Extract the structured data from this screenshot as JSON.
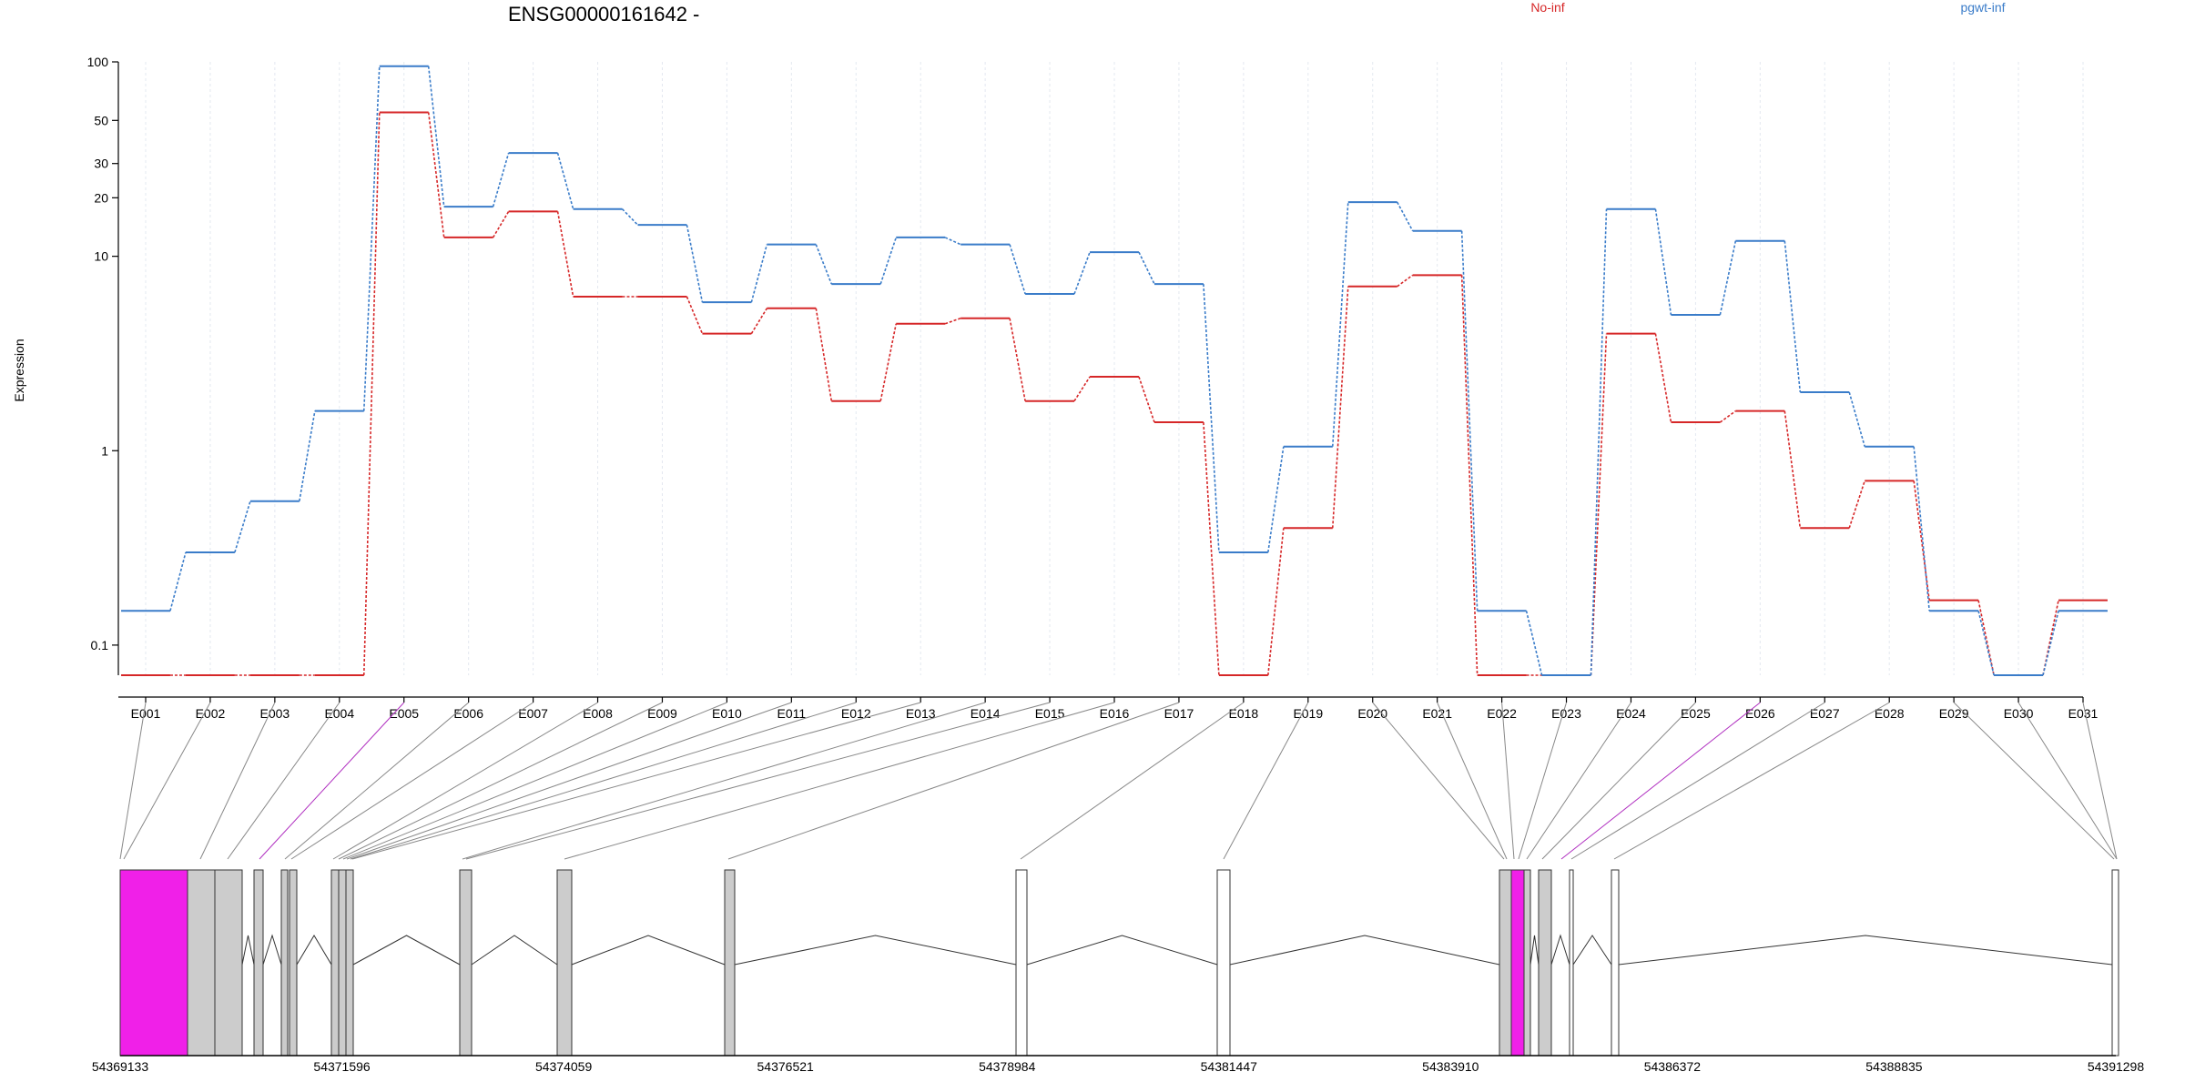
{
  "chart_data": {
    "type": "line",
    "title": "ENSG00000161642 -",
    "xlabel": "",
    "ylabel": "Expression",
    "y_scale": "log",
    "ylim": [
      0.07,
      100
    ],
    "y_ticks": [
      0.1,
      1,
      10,
      20,
      30,
      50,
      100
    ],
    "y_tick_labels": [
      "0.1",
      "1",
      "10",
      "20",
      "30",
      "50",
      "100"
    ],
    "grid": true,
    "legend_position": "top",
    "categories": [
      "E001",
      "E002",
      "E003",
      "E004",
      "E005",
      "E006",
      "E007",
      "E008",
      "E009",
      "E010",
      "E011",
      "E012",
      "E013",
      "E014",
      "E015",
      "E016",
      "E017",
      "E018",
      "E019",
      "E020",
      "E021",
      "E022",
      "E023",
      "E024",
      "E025",
      "E026",
      "E027",
      "E028",
      "E029",
      "E030",
      "E031"
    ],
    "series": [
      {
        "name": "No-inf",
        "color": "#d62728",
        "values": [
          0.07,
          0.07,
          0.07,
          0.07,
          55,
          12.5,
          17,
          6.2,
          6.2,
          4,
          5.4,
          1.8,
          4.5,
          4.8,
          1.8,
          2.4,
          1.4,
          0.07,
          0.4,
          7,
          8,
          0.07,
          0.07,
          4,
          1.4,
          1.6,
          0.4,
          0.7,
          0.17,
          0.07,
          0.17
        ]
      },
      {
        "name": "pgwt-inf",
        "color": "#3a7cc9",
        "values": [
          0.15,
          0.3,
          0.55,
          1.6,
          95,
          18,
          34,
          17.5,
          14.5,
          5.8,
          11.5,
          7.2,
          12.5,
          11.5,
          6.4,
          10.5,
          7.2,
          0.3,
          1.05,
          19,
          13.5,
          0.15,
          0.07,
          17.5,
          5,
          12,
          2,
          1.05,
          0.15,
          0.07,
          0.15
        ]
      }
    ]
  },
  "gene_model": {
    "coordinate_labels": [
      "54369133",
      "54371596",
      "54374059",
      "54376521",
      "54378984",
      "54381447",
      "54383910",
      "54386372",
      "54388835",
      "54391298"
    ],
    "exon_color_gray": "#cccccc",
    "exon_color_highlight": "#f020e8",
    "connector_color_highlight": "#b030c0"
  }
}
